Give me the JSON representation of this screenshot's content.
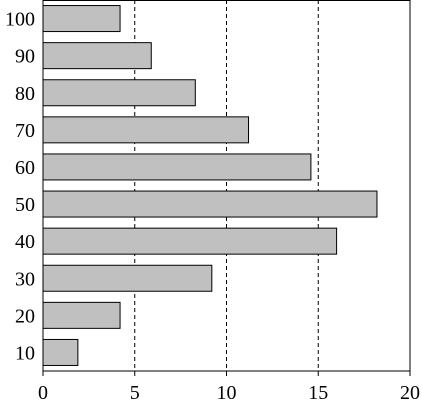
{
  "chart_data": {
    "type": "bar",
    "orientation": "horizontal",
    "title": "",
    "xlabel": "",
    "ylabel": "",
    "categories": [
      "100",
      "90",
      "80",
      "70",
      "60",
      "50",
      "40",
      "30",
      "20",
      "10"
    ],
    "values": [
      4.2,
      5.9,
      8.3,
      11.2,
      14.6,
      18.2,
      16.0,
      9.2,
      4.2,
      1.9
    ],
    "xlim": [
      0,
      20
    ],
    "xticks": [
      "0",
      "5",
      "10",
      "15",
      "20"
    ],
    "grid": "vertical dashed at 5, 10, 15",
    "colors": {
      "bar_fill": "#c0c0c0",
      "bar_stroke": "#000000",
      "axis": "#000000"
    }
  }
}
